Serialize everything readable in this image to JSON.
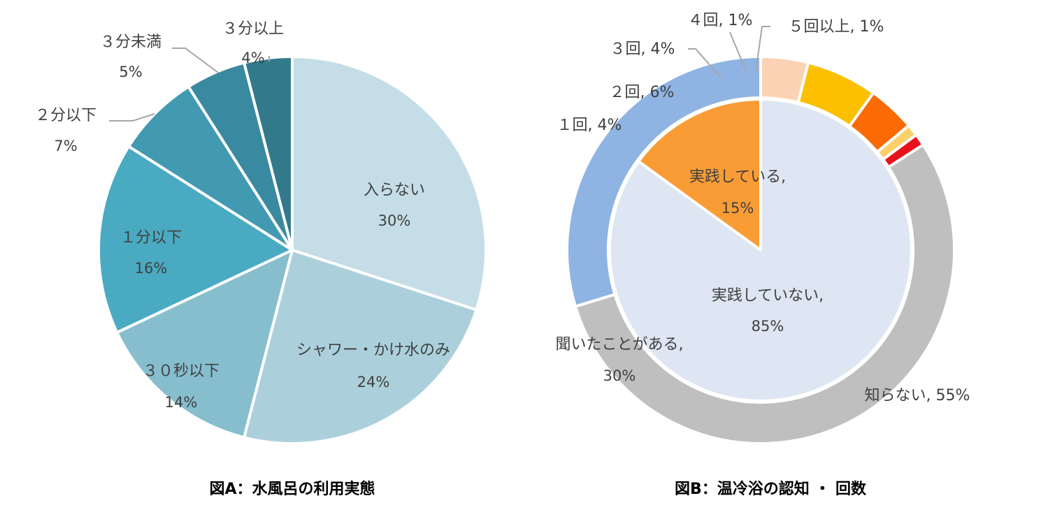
{
  "chart_data": [
    {
      "type": "pie",
      "title": "図A：水風呂の利用実態",
      "slices": [
        {
          "name": "入らない",
          "value": 30,
          "label": "30%",
          "color": "#c5dde6"
        },
        {
          "name": "シャワー・かけ水のみ",
          "value": 24,
          "label": "24%",
          "color": "#abd0dc"
        },
        {
          "name": "３０秒以下",
          "value": 14,
          "label": "14%",
          "color": "#86bece"
        },
        {
          "name": "１分以下",
          "value": 16,
          "label": "16%",
          "color": "#4aaac2"
        },
        {
          "name": "２分以下",
          "value": 7,
          "label": "7%",
          "color": "#4299b2"
        },
        {
          "name": "３分未満",
          "value": 5,
          "label": "5%",
          "color": "#398aa0"
        },
        {
          "name": "３分以上",
          "value": 4,
          "label": "4%",
          "color": "#32798b"
        }
      ]
    },
    {
      "type": "pie",
      "subtype": "pie-with-outer-ring",
      "title": "図B：温冷浴の認知 ・ 回数",
      "inner": [
        {
          "name": "実践している,",
          "value": 15,
          "label": "15%",
          "color": "#fa9c35"
        },
        {
          "name": "実践していない,",
          "value": 85,
          "label": "85%",
          "color": "#dde6f2"
        }
      ],
      "outer": [
        {
          "name": "１回, 4%",
          "value": 4,
          "color": "#fbd3b4"
        },
        {
          "name": "２回, 6%",
          "value": 6,
          "color": "#fcc000"
        },
        {
          "name": "３回, 4%",
          "value": 4,
          "color": "#fb6a03"
        },
        {
          "name": "４回, 1%",
          "value": 1,
          "color": "#fdd06c"
        },
        {
          "name": "５回以上, 1%",
          "value": 1,
          "color": "#e8121a"
        },
        {
          "name": "知らない, 55%",
          "value": 55,
          "color": "#bfbfbf"
        },
        {
          "name": "聞いたことがある,",
          "value": 30,
          "label": "30%",
          "color": "#8fb4e3"
        }
      ]
    }
  ]
}
